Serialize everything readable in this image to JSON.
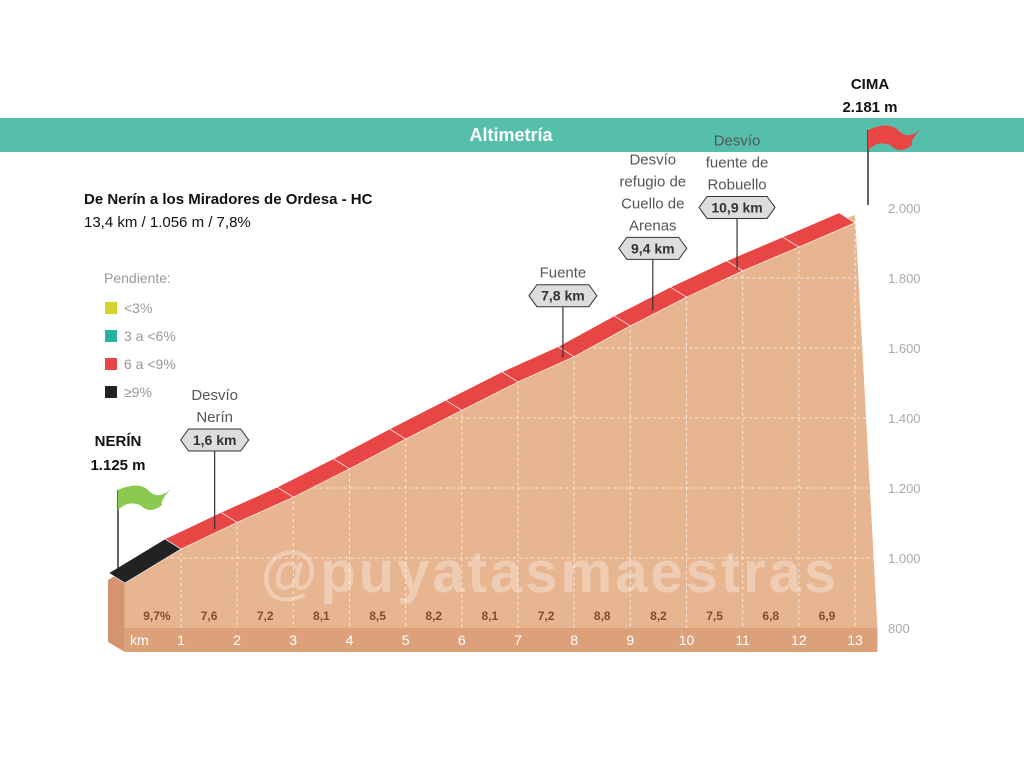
{
  "banner": {
    "title": "Altimetría",
    "color": "#56bfac"
  },
  "header": {
    "title": "De Nerín a los Miradores de Ordesa  - HC",
    "stats": "13,4 km / 1.056 m / 7,8%"
  },
  "legend": {
    "title": "Pendiente:",
    "items": [
      {
        "label": "<3%",
        "color": "#d4d431"
      },
      {
        "label": "3 a <6%",
        "color": "#27b3a0"
      },
      {
        "label": "6 a <9%",
        "color": "#e84545"
      },
      {
        "label": "≥9%",
        "color": "#222222"
      }
    ]
  },
  "start": {
    "name": "NERÍN",
    "altitude": "1.125 m",
    "flag_color": "#8cc94f"
  },
  "summit": {
    "name": "CIMA",
    "altitude": "2.181 m",
    "flag_color": "#e84545"
  },
  "watermark": "@puyatasmaestras",
  "chart_data": {
    "type": "area",
    "xlabel": "km",
    "x_ticks": [
      "1",
      "2",
      "3",
      "4",
      "5",
      "6",
      "7",
      "8",
      "9",
      "10",
      "11",
      "12",
      "13"
    ],
    "y_ticks": [
      "800",
      "1.000",
      "1.200",
      "1.400",
      "1.600",
      "1.800",
      "2.000"
    ],
    "ylim": [
      800,
      2181
    ],
    "total_km": 13.4,
    "start_altitude": 1125,
    "segment_gradients": [
      "9,7%",
      "7,6",
      "7,2",
      "8,1",
      "8,5",
      "8,2",
      "8,1",
      "7,2",
      "8,8",
      "8,2",
      "7,5",
      "6,8",
      "6,9"
    ],
    "gradient_values": [
      9.7,
      7.6,
      7.2,
      8.1,
      8.5,
      8.2,
      8.1,
      7.2,
      8.8,
      8.2,
      7.5,
      6.8,
      6.9
    ],
    "landmarks": [
      {
        "km": 1.6,
        "label": "1,6 km",
        "name_lines": [
          "Desvío",
          "Nerín"
        ]
      },
      {
        "km": 7.8,
        "label": "7,8 km",
        "name_lines": [
          "Fuente"
        ]
      },
      {
        "km": 9.4,
        "label": "9,4 km",
        "name_lines": [
          "Desvío",
          "refugio de",
          "Cuello de",
          "Arenas"
        ]
      },
      {
        "km": 10.9,
        "label": "10,9 km",
        "name_lines": [
          "Desvío",
          "fuente de",
          "Robuello"
        ]
      }
    ],
    "grid": true
  }
}
